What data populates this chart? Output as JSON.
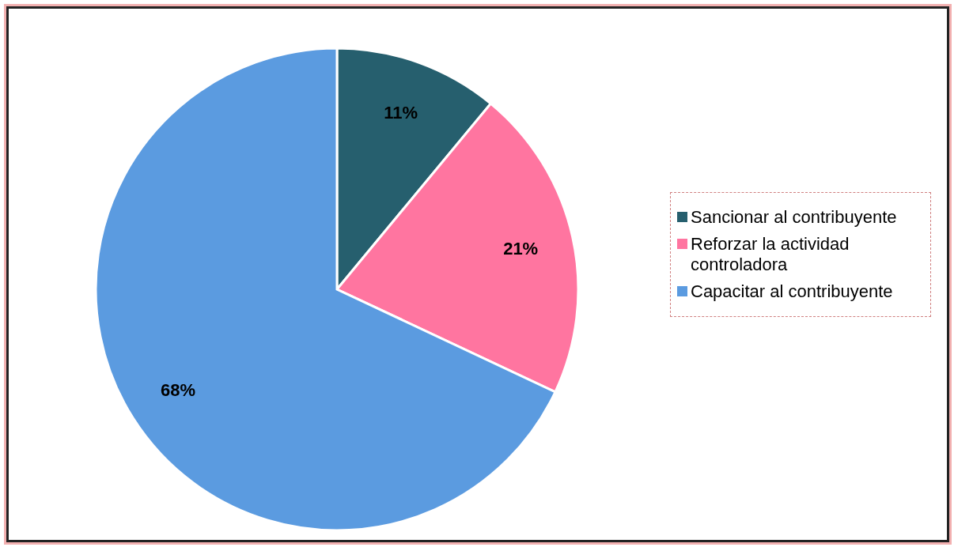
{
  "chart_data": {
    "type": "pie",
    "categories": [
      "Sancionar al contribuyente",
      "Reforzar la actividad controladora",
      "Capacitar al contribuyente"
    ],
    "values": [
      11,
      21,
      68
    ],
    "colors": [
      "#265f6e",
      "#ff75a0",
      "#5b9be0"
    ],
    "value_labels": [
      "11%",
      "21%",
      "68%"
    ],
    "legend": "right"
  }
}
